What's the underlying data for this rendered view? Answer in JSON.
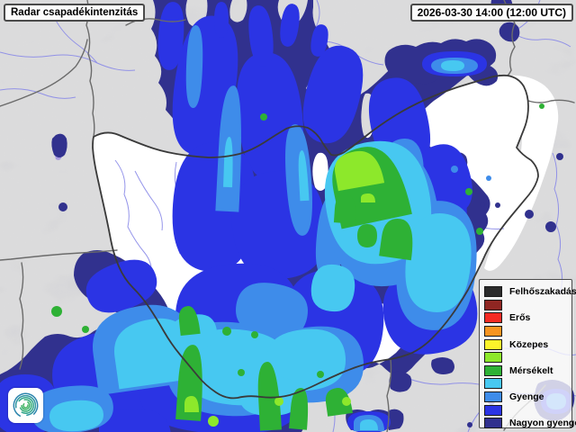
{
  "header": {
    "title": "Radar csapadékintenzitás",
    "timestamp": "2026-03-30 14:00 (12:00 UTC)"
  },
  "legend": {
    "items": [
      {
        "label": "Felhőszakadás",
        "color": "#2b2b2b"
      },
      {
        "label": "",
        "color": "#8f2622"
      },
      {
        "label": "Erős",
        "color": "#f42b24"
      },
      {
        "label": "",
        "color": "#f79421"
      },
      {
        "label": "Közepes",
        "color": "#fcf32a"
      },
      {
        "label": "",
        "color": "#8de82b"
      },
      {
        "label": "Mérsékelt",
        "color": "#2eb135"
      },
      {
        "label": "",
        "color": "#47c8f1"
      },
      {
        "label": "Gyenge",
        "color": "#3e8cea"
      },
      {
        "label": "",
        "color": "#2b34e4"
      },
      {
        "label": "Nagyon gyenge",
        "color": "#31318e"
      }
    ]
  },
  "logo": {
    "name": "hungaromet-spiral-logo"
  },
  "map": {
    "background_color": "#d7d7d9",
    "radar_clear_color": "#ffffff",
    "country_border_color": "#3a3a3a",
    "neighbor_border_color": "#6b6b6b",
    "river_color": "#8a8ae8"
  }
}
